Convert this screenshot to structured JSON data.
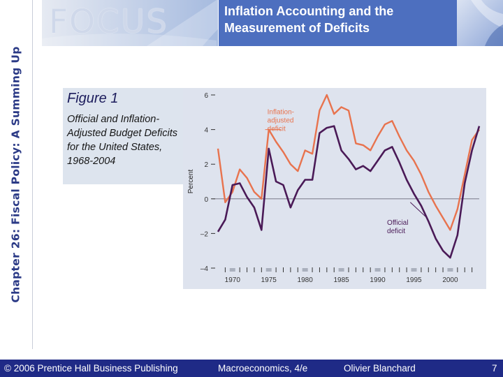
{
  "side_title": "Chapter 26: Fiscal Policy: A Summing Up",
  "logo_text": "FOCUS",
  "slide_title": [
    "Inflation Accounting and the",
    "Measurement of Deficits"
  ],
  "figure": {
    "label": "Figure 1",
    "caption": "Official and Inflation-Adjusted Budget Deficits for the United States, 1968-2004"
  },
  "footer": {
    "copyright": "© 2006 Prentice Hall Business Publishing",
    "book": "Macroeconomics, 4/e",
    "author": "Olivier Blanchard",
    "page": "7"
  },
  "colors": {
    "inflation_adjusted": "#e8734e",
    "official": "#4a1a57",
    "plot_bg": "#dee3ee",
    "title_box": "#4d6fbf",
    "footer": "#1f2a86"
  },
  "chart_data": {
    "type": "line",
    "ylabel": "Percent",
    "xlim": [
      1968,
      2004
    ],
    "ylim": [
      -4,
      6
    ],
    "yticks": [
      -4,
      -2,
      0,
      2,
      4,
      6
    ],
    "ytick_labels": [
      "–4",
      "–2",
      "0",
      "2",
      "4",
      "6"
    ],
    "xtick_labels": [
      1970,
      1975,
      1980,
      1985,
      1990,
      1995,
      2000
    ],
    "x": [
      1968,
      1969,
      1970,
      1971,
      1972,
      1973,
      1974,
      1975,
      1976,
      1977,
      1978,
      1979,
      1980,
      1981,
      1982,
      1983,
      1984,
      1985,
      1986,
      1987,
      1988,
      1989,
      1990,
      1991,
      1992,
      1993,
      1994,
      1995,
      1996,
      1997,
      1998,
      1999,
      2000,
      2001,
      2002,
      2003,
      2004
    ],
    "series": [
      {
        "name": "Inflation-adjusted deficit",
        "label": [
          "Inflation-",
          "adjusted",
          "deficit"
        ],
        "values": [
          2.9,
          -0.2,
          0.4,
          1.7,
          1.2,
          0.4,
          0.0,
          4.0,
          3.3,
          2.7,
          2.0,
          1.6,
          2.8,
          2.6,
          5.1,
          6.0,
          4.9,
          5.3,
          5.1,
          3.2,
          3.1,
          2.8,
          3.6,
          4.3,
          4.5,
          3.6,
          2.8,
          2.2,
          1.4,
          0.4,
          -0.4,
          -1.1,
          -1.8,
          -0.6,
          1.4,
          3.4,
          4.0
        ]
      },
      {
        "name": "Official deficit",
        "label": [
          "Official",
          "deficit"
        ],
        "values": [
          -1.9,
          -1.2,
          0.8,
          0.9,
          0.1,
          -0.5,
          -1.8,
          2.9,
          1.0,
          0.8,
          -0.5,
          0.5,
          1.1,
          1.1,
          3.8,
          4.1,
          4.2,
          2.8,
          2.3,
          1.7,
          1.9,
          1.6,
          2.2,
          2.8,
          3.0,
          2.1,
          1.1,
          0.3,
          -0.4,
          -1.3,
          -2.3,
          -3.0,
          -3.4,
          -2.1,
          0.9,
          2.8,
          4.2
        ]
      }
    ]
  }
}
